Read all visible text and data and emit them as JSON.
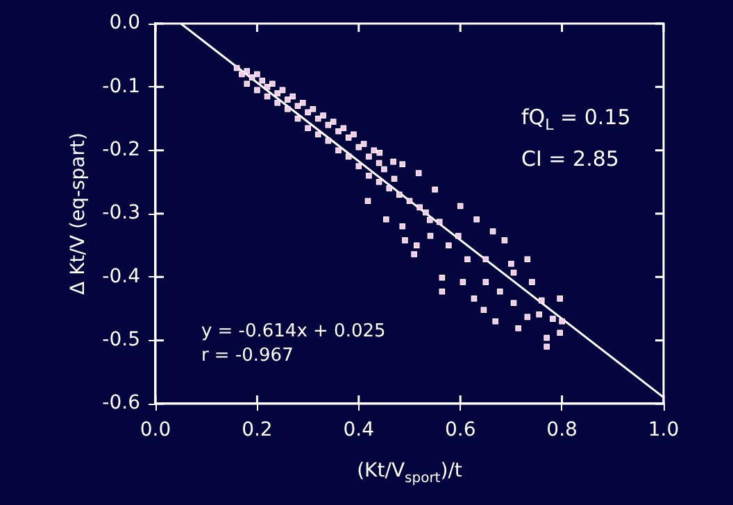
{
  "chart_data": {
    "type": "scatter",
    "xlabel": "(Kt/V$_{sport}$)/t",
    "ylabel": "Δ Kt/V (eq-spart)",
    "annotations": [
      "fQ$_{L}$ = 0.15",
      "CI = 2.85",
      "y = -0.614x + 0.025",
      "r = -0.967"
    ],
    "xlim": [
      0.0,
      1.0
    ],
    "xticks": [
      {
        "value": 0,
        "label": "0.0"
      },
      0.2,
      0.4,
      0.6,
      0.8,
      {
        "value": 1,
        "label": "1.0"
      }
    ],
    "ylim": [
      -0.6,
      0.0
    ],
    "yticks": [
      -0.6,
      -0.5,
      -0.4,
      -0.3,
      -0.2,
      -0.1,
      {
        "value": 0,
        "label": "0.0"
      }
    ],
    "grid": false,
    "legend": false,
    "marker": "square",
    "series": [
      {
        "color": "#f4c6ec",
        "x": [
          0.16,
          0.17,
          0.18,
          0.18,
          0.19,
          0.2,
          0.2,
          0.21,
          0.22,
          0.22,
          0.23,
          0.24,
          0.24,
          0.25,
          0.26,
          0.26,
          0.27,
          0.28,
          0.28,
          0.29,
          0.3,
          0.3,
          0.31,
          0.32,
          0.32,
          0.33,
          0.34,
          0.34,
          0.35,
          0.36,
          0.36,
          0.37,
          0.38,
          0.38,
          0.39,
          0.4,
          0.4,
          0.41,
          0.42,
          0.42,
          0.43,
          0.44,
          0.44,
          0.45,
          0.46,
          0.47,
          0.48,
          0.5,
          0.52,
          0.54,
          0.418,
          0.454,
          0.491,
          0.509,
          0.564,
          0.564,
          0.605,
          0.627,
          0.646,
          0.669,
          0.705,
          0.714,
          0.732,
          0.77,
          0.77,
          0.796,
          0.796,
          0.755,
          0.782,
          0.732,
          0.7,
          0.687,
          0.664,
          0.632,
          0.6,
          0.55,
          0.518,
          0.486,
          0.468,
          0.441,
          0.65,
          0.678,
          0.741,
          0.614,
          0.577,
          0.541,
          0.514,
          0.596,
          0.559,
          0.532,
          0.486,
          0.65,
          0.705,
          0.76,
          0.8
        ],
        "values": [
          -0.07,
          -0.08,
          -0.075,
          -0.095,
          -0.085,
          -0.08,
          -0.105,
          -0.09,
          -0.1,
          -0.115,
          -0.095,
          -0.11,
          -0.125,
          -0.105,
          -0.12,
          -0.135,
          -0.115,
          -0.13,
          -0.15,
          -0.125,
          -0.14,
          -0.165,
          -0.135,
          -0.15,
          -0.175,
          -0.145,
          -0.16,
          -0.185,
          -0.155,
          -0.17,
          -0.2,
          -0.165,
          -0.18,
          -0.21,
          -0.175,
          -0.195,
          -0.225,
          -0.19,
          -0.21,
          -0.24,
          -0.2,
          -0.22,
          -0.25,
          -0.23,
          -0.26,
          -0.245,
          -0.27,
          -0.28,
          -0.29,
          -0.31,
          -0.28,
          -0.309,
          -0.342,
          -0.364,
          -0.401,
          -0.423,
          -0.408,
          -0.434,
          -0.452,
          -0.47,
          -0.441,
          -0.481,
          -0.463,
          -0.496,
          -0.51,
          -0.434,
          -0.488,
          -0.459,
          -0.466,
          -0.372,
          -0.379,
          -0.342,
          -0.328,
          -0.309,
          -0.288,
          -0.262,
          -0.236,
          -0.222,
          -0.218,
          -0.204,
          -0.408,
          -0.423,
          -0.408,
          -0.372,
          -0.35,
          -0.335,
          -0.35,
          -0.335,
          -0.313,
          -0.298,
          -0.32,
          -0.372,
          -0.393,
          -0.437,
          -0.47
        ]
      },
      {
        "type": "line",
        "color": "#ffffff",
        "marker": "none",
        "line_style": "solid",
        "x": [
          0.05,
          1.0
        ],
        "values": [
          0.0,
          -0.59
        ]
      }
    ]
  }
}
